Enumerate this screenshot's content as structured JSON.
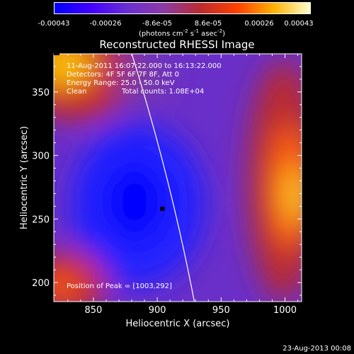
{
  "colorbar": {
    "ticks": [
      "-0.00043",
      "-0.00026",
      "-8.6e-05",
      "8.6e-05",
      "0.00026",
      "0.00043"
    ],
    "units_prefix": "(photons cm",
    "units_exp1": "-2",
    "units_mid": " s",
    "units_exp2": "-1",
    "units_mid2": " asec",
    "units_exp3": "-2",
    "units_suffix": ")"
  },
  "title": "Reconstructed RHESSI Image",
  "info": {
    "time": "11-Aug-2011 16:07:22.000 to 16:13:22.000",
    "detectors": "Detectors: 4F 5F 6F 7F 8F, Att 0",
    "energy": "Energy Range: 25.0 - 50.0 keV",
    "method": "Clean",
    "counts": "Total counts: 1.08E+04",
    "peak": "Position of Peak = [1003,292]"
  },
  "footer": "23-Aug-2013 00:08",
  "chart_data": {
    "type": "heatmap",
    "title": "Reconstructed RHESSI Image",
    "xlabel": "Heliocentric X (arcsec)",
    "ylabel": "Heliocentric Y (arcsec)",
    "xlim": [
      819,
      1013
    ],
    "ylim": [
      185,
      380
    ],
    "xticks": [
      850,
      900,
      950,
      1000
    ],
    "yticks": [
      200,
      250,
      300,
      350
    ],
    "colorbar_range": [
      -0.00043,
      0.00043
    ],
    "colormap": [
      "#0000ff",
      "#4400ff",
      "#6a2fd0",
      "#8c3aa6",
      "#bb2b2e",
      "#ff4000",
      "#ffb000",
      "#ffffcc"
    ],
    "peak_position": [
      1003,
      292
    ],
    "limb_x_at_ylim": [
      883,
      929
    ],
    "marker_position": [
      904,
      258
    ]
  }
}
